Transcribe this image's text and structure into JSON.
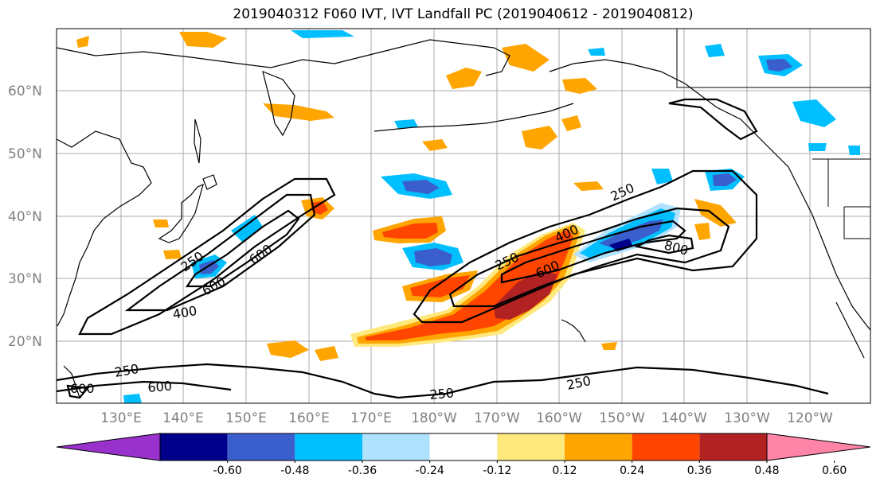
{
  "title": "2019040312 F060 IVT, IVT Landfall PC (2019040612 - 2019040812)",
  "lat_labels": [
    "60°N",
    "50°N",
    "40°N",
    "30°N",
    "20°N"
  ],
  "lon_labels": [
    "130°E",
    "140°E",
    "150°E",
    "160°E",
    "170°E",
    "180°W",
    "170°W",
    "160°W",
    "150°W",
    "140°W",
    "130°W",
    "120°W"
  ],
  "contour_labels": [
    "250",
    "600",
    "600",
    "600",
    "400",
    "250",
    "600",
    "250",
    "250",
    "400",
    "250",
    "600",
    "800",
    "250"
  ],
  "colorbar": {
    "ticks": [
      "-0.60",
      "-0.48",
      "-0.36",
      "-0.24",
      "-0.12",
      "0.12",
      "0.24",
      "0.36",
      "0.48",
      "0.60"
    ],
    "colors": [
      "#9932cc",
      "#00008b",
      "#3a5fcd",
      "#00bfff",
      "#b0e2ff",
      "#ffffff",
      "#ffe87c",
      "#ffa500",
      "#ff4500",
      "#b22222",
      "#ff85a8"
    ]
  },
  "colors": {
    "contour": "#000000",
    "grid": "#a9a9a9",
    "coast": "#000000"
  }
}
